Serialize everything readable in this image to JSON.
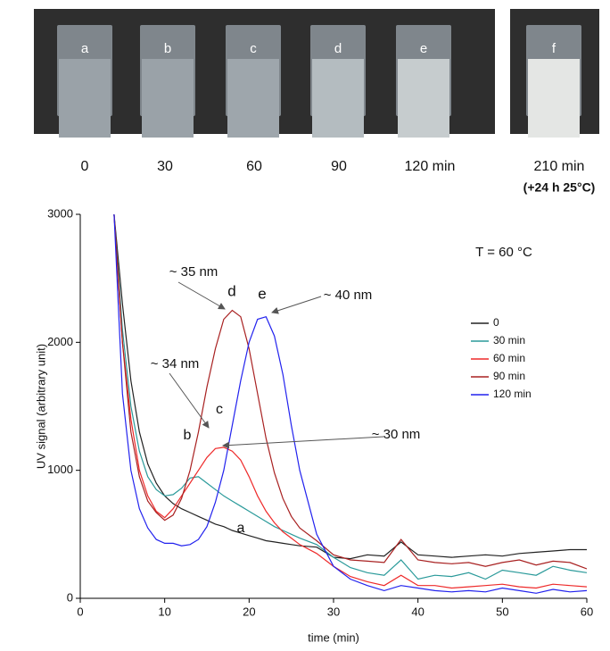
{
  "photos": {
    "labels": [
      "a",
      "b",
      "c",
      "d",
      "e",
      "f"
    ],
    "captions": [
      "0",
      "30",
      "60",
      "90",
      "120 min",
      "210 min"
    ],
    "note": "(+24 h 25°C)"
  },
  "chart_data": {
    "type": "line",
    "xlabel": "time (min)",
    "ylabel": "UV signal (arbitrary unit)",
    "xlim": [
      0,
      60
    ],
    "xticks": [
      0,
      10,
      20,
      30,
      40,
      50,
      60
    ],
    "ylim": [
      0,
      3000
    ],
    "yticks": [
      0,
      1000,
      2000,
      3000
    ],
    "annotations": [
      "T = 60 °C",
      "~ 35 nm",
      "~ 40 nm",
      "~ 34 nm",
      "~ 30 nm",
      "a",
      "b",
      "c",
      "d",
      "e"
    ],
    "x": [
      4,
      5,
      6,
      7,
      8,
      9,
      10,
      11,
      12,
      13,
      14,
      15,
      16,
      17,
      18,
      19,
      20,
      21,
      22,
      23,
      24,
      25,
      26,
      28,
      30,
      32,
      34,
      36,
      38,
      40,
      42,
      44,
      46,
      48,
      50,
      52,
      54,
      56,
      58,
      60
    ],
    "series": [
      {
        "name": "0",
        "color": "#222222",
        "values": [
          3000,
          2300,
          1700,
          1300,
          1050,
          900,
          800,
          740,
          700,
          670,
          640,
          610,
          580,
          560,
          530,
          510,
          490,
          470,
          450,
          440,
          430,
          420,
          410,
          400,
          320,
          310,
          340,
          330,
          440,
          340,
          330,
          320,
          330,
          340,
          330,
          350,
          360,
          370,
          380,
          380
        ]
      },
      {
        "name": "30 min",
        "color": "#2a9a9a",
        "values": [
          3000,
          2100,
          1500,
          1150,
          950,
          850,
          800,
          810,
          860,
          940,
          950,
          900,
          850,
          800,
          760,
          720,
          680,
          640,
          600,
          560,
          530,
          500,
          470,
          420,
          320,
          240,
          200,
          180,
          300,
          150,
          180,
          170,
          200,
          150,
          220,
          200,
          180,
          250,
          220,
          200
        ]
      },
      {
        "name": "60 min",
        "color": "#ee2a2a",
        "values": [
          3000,
          2000,
          1400,
          1000,
          800,
          680,
          630,
          700,
          800,
          900,
          1000,
          1100,
          1170,
          1180,
          1150,
          1080,
          950,
          800,
          680,
          590,
          520,
          470,
          420,
          350,
          250,
          170,
          130,
          100,
          180,
          100,
          100,
          80,
          90,
          100,
          110,
          90,
          80,
          110,
          100,
          90
        ]
      },
      {
        "name": "90 min",
        "color": "#a82020",
        "values": [
          3000,
          2000,
          1300,
          950,
          760,
          670,
          610,
          650,
          780,
          1000,
          1300,
          1650,
          1950,
          2180,
          2250,
          2200,
          1950,
          1600,
          1250,
          980,
          780,
          640,
          550,
          450,
          340,
          300,
          290,
          280,
          460,
          300,
          280,
          270,
          280,
          250,
          280,
          300,
          260,
          290,
          280,
          230
        ]
      },
      {
        "name": "120 min",
        "color": "#2222ee",
        "values": [
          3000,
          1600,
          1000,
          700,
          550,
          460,
          430,
          430,
          410,
          420,
          460,
          560,
          750,
          1000,
          1350,
          1700,
          2000,
          2180,
          2200,
          2050,
          1750,
          1350,
          1000,
          500,
          250,
          150,
          100,
          60,
          100,
          80,
          60,
          50,
          60,
          50,
          80,
          60,
          40,
          70,
          50,
          60
        ]
      }
    ]
  }
}
